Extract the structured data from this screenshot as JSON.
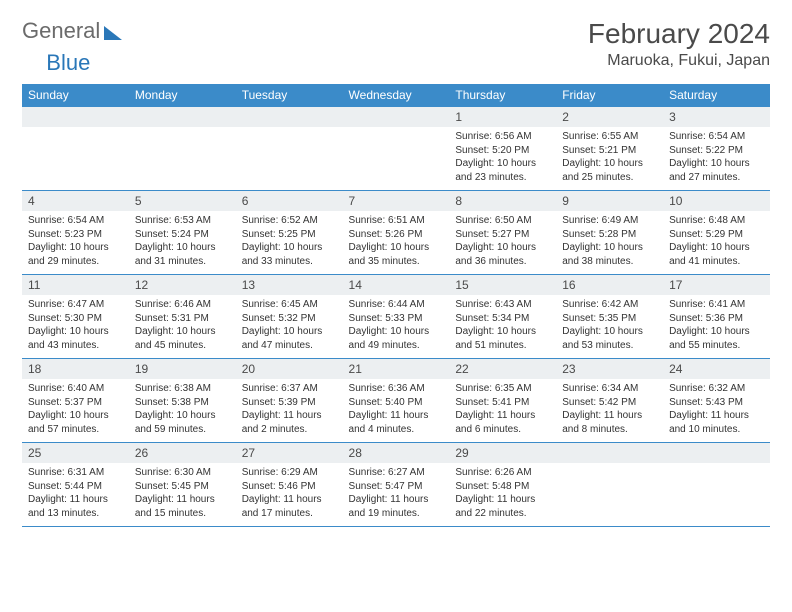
{
  "brand": {
    "part1": "General",
    "part2": "Blue"
  },
  "title": "February 2024",
  "location": "Maruoka, Fukui, Japan",
  "colors": {
    "header_bg": "#3b8bc9",
    "header_text": "#ffffff",
    "daynum_bg": "#eceff1",
    "grid_line": "#3b8bc9",
    "body_text": "#333333",
    "title_text": "#4a4a4a"
  },
  "day_headers": [
    "Sunday",
    "Monday",
    "Tuesday",
    "Wednesday",
    "Thursday",
    "Friday",
    "Saturday"
  ],
  "weeks": [
    [
      null,
      null,
      null,
      null,
      {
        "n": "1",
        "sr": "6:56 AM",
        "ss": "5:20 PM",
        "dl": "10 hours and 23 minutes."
      },
      {
        "n": "2",
        "sr": "6:55 AM",
        "ss": "5:21 PM",
        "dl": "10 hours and 25 minutes."
      },
      {
        "n": "3",
        "sr": "6:54 AM",
        "ss": "5:22 PM",
        "dl": "10 hours and 27 minutes."
      }
    ],
    [
      {
        "n": "4",
        "sr": "6:54 AM",
        "ss": "5:23 PM",
        "dl": "10 hours and 29 minutes."
      },
      {
        "n": "5",
        "sr": "6:53 AM",
        "ss": "5:24 PM",
        "dl": "10 hours and 31 minutes."
      },
      {
        "n": "6",
        "sr": "6:52 AM",
        "ss": "5:25 PM",
        "dl": "10 hours and 33 minutes."
      },
      {
        "n": "7",
        "sr": "6:51 AM",
        "ss": "5:26 PM",
        "dl": "10 hours and 35 minutes."
      },
      {
        "n": "8",
        "sr": "6:50 AM",
        "ss": "5:27 PM",
        "dl": "10 hours and 36 minutes."
      },
      {
        "n": "9",
        "sr": "6:49 AM",
        "ss": "5:28 PM",
        "dl": "10 hours and 38 minutes."
      },
      {
        "n": "10",
        "sr": "6:48 AM",
        "ss": "5:29 PM",
        "dl": "10 hours and 41 minutes."
      }
    ],
    [
      {
        "n": "11",
        "sr": "6:47 AM",
        "ss": "5:30 PM",
        "dl": "10 hours and 43 minutes."
      },
      {
        "n": "12",
        "sr": "6:46 AM",
        "ss": "5:31 PM",
        "dl": "10 hours and 45 minutes."
      },
      {
        "n": "13",
        "sr": "6:45 AM",
        "ss": "5:32 PM",
        "dl": "10 hours and 47 minutes."
      },
      {
        "n": "14",
        "sr": "6:44 AM",
        "ss": "5:33 PM",
        "dl": "10 hours and 49 minutes."
      },
      {
        "n": "15",
        "sr": "6:43 AM",
        "ss": "5:34 PM",
        "dl": "10 hours and 51 minutes."
      },
      {
        "n": "16",
        "sr": "6:42 AM",
        "ss": "5:35 PM",
        "dl": "10 hours and 53 minutes."
      },
      {
        "n": "17",
        "sr": "6:41 AM",
        "ss": "5:36 PM",
        "dl": "10 hours and 55 minutes."
      }
    ],
    [
      {
        "n": "18",
        "sr": "6:40 AM",
        "ss": "5:37 PM",
        "dl": "10 hours and 57 minutes."
      },
      {
        "n": "19",
        "sr": "6:38 AM",
        "ss": "5:38 PM",
        "dl": "10 hours and 59 minutes."
      },
      {
        "n": "20",
        "sr": "6:37 AM",
        "ss": "5:39 PM",
        "dl": "11 hours and 2 minutes."
      },
      {
        "n": "21",
        "sr": "6:36 AM",
        "ss": "5:40 PM",
        "dl": "11 hours and 4 minutes."
      },
      {
        "n": "22",
        "sr": "6:35 AM",
        "ss": "5:41 PM",
        "dl": "11 hours and 6 minutes."
      },
      {
        "n": "23",
        "sr": "6:34 AM",
        "ss": "5:42 PM",
        "dl": "11 hours and 8 minutes."
      },
      {
        "n": "24",
        "sr": "6:32 AM",
        "ss": "5:43 PM",
        "dl": "11 hours and 10 minutes."
      }
    ],
    [
      {
        "n": "25",
        "sr": "6:31 AM",
        "ss": "5:44 PM",
        "dl": "11 hours and 13 minutes."
      },
      {
        "n": "26",
        "sr": "6:30 AM",
        "ss": "5:45 PM",
        "dl": "11 hours and 15 minutes."
      },
      {
        "n": "27",
        "sr": "6:29 AM",
        "ss": "5:46 PM",
        "dl": "11 hours and 17 minutes."
      },
      {
        "n": "28",
        "sr": "6:27 AM",
        "ss": "5:47 PM",
        "dl": "11 hours and 19 minutes."
      },
      {
        "n": "29",
        "sr": "6:26 AM",
        "ss": "5:48 PM",
        "dl": "11 hours and 22 minutes."
      },
      null,
      null
    ]
  ],
  "labels": {
    "sunrise": "Sunrise:",
    "sunset": "Sunset:",
    "daylight": "Daylight:"
  }
}
